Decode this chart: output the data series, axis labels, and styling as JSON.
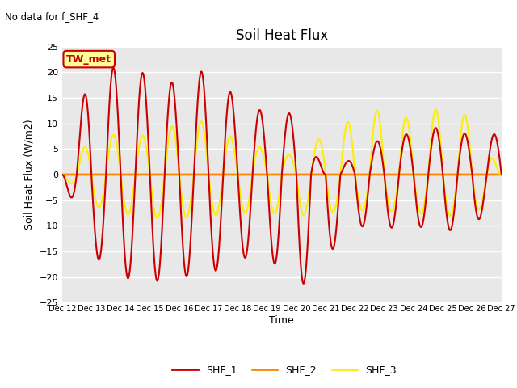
{
  "title": "Soil Heat Flux",
  "subtitle": "No data for f_SHF_4",
  "ylabel": "Soil Heat Flux (W/m2)",
  "xlabel": "Time",
  "ylim": [
    -25,
    25
  ],
  "yticks": [
    -25,
    -20,
    -15,
    -10,
    -5,
    0,
    5,
    10,
    15,
    20,
    25
  ],
  "xtick_labels": [
    "Dec 12",
    "Dec 13",
    "Dec 14",
    "Dec 15",
    "Dec 16",
    "Dec 17",
    "Dec 18",
    "Dec 19",
    "Dec 20",
    "Dec 21",
    "Dec 22",
    "Dec 23",
    "Dec 24",
    "Dec 25",
    "Dec 26",
    "Dec 27"
  ],
  "bg_color": "#e8e8e8",
  "grid_color": "#ffffff",
  "shf1_color": "#cc0000",
  "shf2_color": "#ff8800",
  "shf3_color": "#ffee00",
  "tw_met_box_color": "#ffff99",
  "tw_met_border_color": "#cc0000",
  "tw_met_text_color": "#cc0000",
  "shf1_peaks": [
    0,
    20.5,
    21.0,
    19.5,
    17.5,
    21.0,
    14.5,
    12.0,
    12.0,
    0,
    3.5,
    7.5,
    8.0,
    9.5,
    7.5,
    8.0
  ],
  "shf1_troughs": [
    0,
    -15.5,
    -20.0,
    -21.0,
    -20.0,
    -19.5,
    -16.5,
    -15.5,
    -23.0,
    -16.0,
    -10.0,
    -10.5,
    -10.0,
    -11.0,
    -10.5,
    -3.0
  ],
  "shf3_peaks": [
    0,
    7.0,
    8.0,
    7.5,
    10.0,
    10.5,
    6.5,
    5.0,
    3.5,
    8.0,
    11.0,
    13.0,
    10.5,
    13.5,
    11.0,
    0
  ],
  "shf3_troughs": [
    0,
    -6.0,
    -7.5,
    -8.5,
    -8.5,
    -8.0,
    -7.5,
    -7.5,
    -8.0,
    -7.5,
    -7.0,
    -7.0,
    -7.5,
    -8.0,
    -8.0,
    -3.0
  ]
}
